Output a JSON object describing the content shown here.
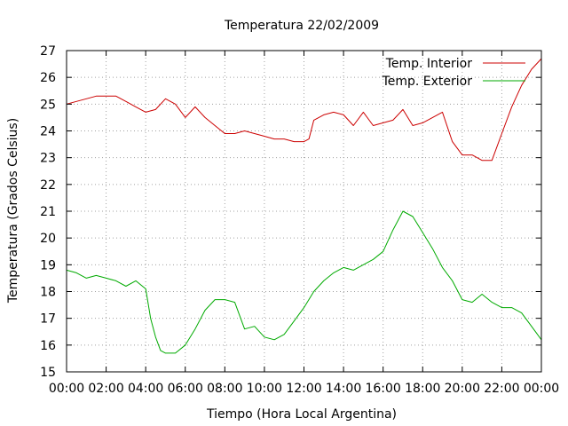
{
  "chart_data": {
    "type": "line",
    "title": "Temperatura 22/02/2009",
    "xlabel": "Tiempo (Hora Local Argentina)",
    "ylabel": "Temperatura (Grados Celsius)",
    "xlim": [
      0,
      24
    ],
    "ylim": [
      15,
      27
    ],
    "grid": true,
    "legend_position": "top-right",
    "x_tick_labels": [
      "00:00",
      "02:00",
      "04:00",
      "06:00",
      "08:00",
      "10:00",
      "12:00",
      "14:00",
      "16:00",
      "18:00",
      "20:00",
      "22:00",
      "00:00"
    ],
    "y_tick_labels": [
      "15",
      "16",
      "17",
      "18",
      "19",
      "20",
      "21",
      "22",
      "23",
      "24",
      "25",
      "26",
      "27"
    ],
    "series": [
      {
        "name": "Temp. Interior",
        "color": "#cc0000",
        "x": [
          0,
          0.5,
          1,
          1.5,
          2,
          2.5,
          3,
          3.5,
          4,
          4.5,
          5,
          5.5,
          6,
          6.5,
          7,
          7.5,
          8,
          8.5,
          9,
          9.5,
          10,
          10.5,
          11,
          11.5,
          12,
          12.25,
          12.5,
          13,
          13.5,
          14,
          14.5,
          15,
          15.5,
          16,
          16.5,
          17,
          17.5,
          18,
          18.5,
          19,
          19.5,
          20,
          20.5,
          21,
          21.5,
          22,
          22.5,
          23,
          23.5,
          24
        ],
        "y": [
          25.0,
          25.1,
          25.2,
          25.3,
          25.3,
          25.3,
          25.1,
          24.9,
          24.7,
          24.8,
          25.2,
          25.0,
          24.5,
          24.9,
          24.5,
          24.2,
          23.9,
          23.9,
          24.0,
          23.9,
          23.8,
          23.7,
          23.7,
          23.6,
          23.6,
          23.7,
          24.4,
          24.6,
          24.7,
          24.6,
          24.2,
          24.7,
          24.2,
          24.3,
          24.4,
          24.8,
          24.2,
          24.3,
          24.5,
          24.7,
          23.6,
          23.1,
          23.1,
          22.9,
          22.9,
          23.9,
          24.9,
          25.7,
          26.3,
          26.7
        ]
      },
      {
        "name": "Temp. Exterior",
        "color": "#00aa00",
        "x": [
          0,
          0.5,
          1,
          1.5,
          2,
          2.5,
          3,
          3.5,
          4,
          4.25,
          4.5,
          4.75,
          5,
          5.5,
          6,
          6.5,
          7,
          7.5,
          8,
          8.5,
          9,
          9.5,
          10,
          10.5,
          11,
          11.5,
          12,
          12.5,
          13,
          13.5,
          14,
          14.5,
          15,
          15.5,
          16,
          16.5,
          17,
          17.5,
          18,
          18.5,
          19,
          19.5,
          20,
          20.5,
          21,
          21.5,
          22,
          22.5,
          23,
          23.5,
          24
        ],
        "y": [
          18.8,
          18.7,
          18.5,
          18.6,
          18.5,
          18.4,
          18.2,
          18.4,
          18.1,
          17.0,
          16.3,
          15.8,
          15.7,
          15.7,
          16.0,
          16.6,
          17.3,
          17.7,
          17.7,
          17.6,
          16.6,
          16.7,
          16.3,
          16.2,
          16.4,
          16.9,
          17.4,
          18.0,
          18.4,
          18.7,
          18.9,
          18.8,
          19.0,
          19.2,
          19.5,
          20.3,
          21.0,
          20.8,
          20.2,
          19.6,
          18.9,
          18.4,
          17.7,
          17.6,
          17.9,
          17.6,
          17.4,
          17.4,
          17.2,
          16.7,
          16.2
        ]
      }
    ]
  }
}
